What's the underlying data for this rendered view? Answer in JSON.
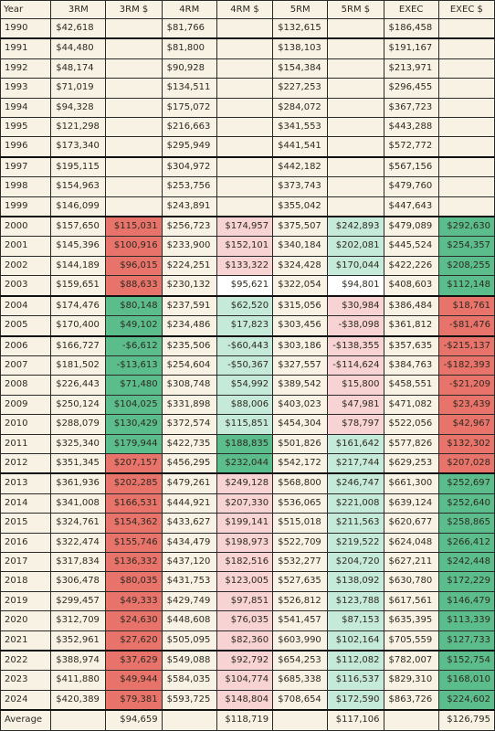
{
  "table": {
    "headers": [
      "Year",
      "3RM",
      "3RM $",
      "4RM",
      "4RM $",
      "5RM",
      "5RM $",
      "EXEC",
      "EXEC $"
    ],
    "group_breaks_before": [
      "1991",
      "1997",
      "2000",
      "2004",
      "2006",
      "2013",
      "2022"
    ],
    "colors": {
      "background": "#f7f2e4",
      "dark_green": "#5bbd8c",
      "light_green": "#c6ead9",
      "dark_red": "#e8736a",
      "light_red": "#f7d3d3",
      "white": "#ffffff"
    },
    "rows": [
      {
        "year": "1990",
        "r3": "$42,618",
        "r3d": "",
        "r4": "$81,766",
        "r4d": "",
        "r5": "$132,615",
        "r5d": "",
        "ex": "$186,458",
        "exd": ""
      },
      {
        "year": "1991",
        "r3": "$44,480",
        "r3d": "",
        "r4": "$81,800",
        "r4d": "",
        "r5": "$138,103",
        "r5d": "",
        "ex": "$191,167",
        "exd": ""
      },
      {
        "year": "1992",
        "r3": "$48,174",
        "r3d": "",
        "r4": "$90,928",
        "r4d": "",
        "r5": "$154,384",
        "r5d": "",
        "ex": "$213,971",
        "exd": ""
      },
      {
        "year": "1993",
        "r3": "$71,019",
        "r3d": "",
        "r4": "$134,511",
        "r4d": "",
        "r5": "$227,253",
        "r5d": "",
        "ex": "$296,455",
        "exd": ""
      },
      {
        "year": "1994",
        "r3": "$94,328",
        "r3d": "",
        "r4": "$175,072",
        "r4d": "",
        "r5": "$284,072",
        "r5d": "",
        "ex": "$367,723",
        "exd": ""
      },
      {
        "year": "1995",
        "r3": "$121,298",
        "r3d": "",
        "r4": "$216,663",
        "r4d": "",
        "r5": "$341,553",
        "r5d": "",
        "ex": "$443,288",
        "exd": ""
      },
      {
        "year": "1996",
        "r3": "$173,340",
        "r3d": "",
        "r4": "$295,949",
        "r4d": "",
        "r5": "$441,541",
        "r5d": "",
        "ex": "$572,772",
        "exd": ""
      },
      {
        "year": "1997",
        "r3": "$195,115",
        "r3d": "",
        "r4": "$304,972",
        "r4d": "",
        "r5": "$442,182",
        "r5d": "",
        "ex": "$567,156",
        "exd": ""
      },
      {
        "year": "1998",
        "r3": "$154,963",
        "r3d": "",
        "r4": "$253,756",
        "r4d": "",
        "r5": "$373,743",
        "r5d": "",
        "ex": "$479,760",
        "exd": ""
      },
      {
        "year": "1999",
        "r3": "$146,099",
        "r3d": "",
        "r4": "$243,891",
        "r4d": "",
        "r5": "$355,042",
        "r5d": "",
        "ex": "$447,643",
        "exd": ""
      },
      {
        "year": "2000",
        "r3": "$157,650",
        "r3d": "$115,031",
        "r3c": "dark_red",
        "r4": "$256,723",
        "r4d": "$174,957",
        "r4c": "light_red",
        "r5": "$375,507",
        "r5d": "$242,893",
        "r5c": "light_green",
        "ex": "$479,089",
        "exd": "$292,630",
        "exc": "dark_green"
      },
      {
        "year": "2001",
        "r3": "$145,396",
        "r3d": "$100,916",
        "r3c": "dark_red",
        "r4": "$233,900",
        "r4d": "$152,101",
        "r4c": "light_red",
        "r5": "$340,184",
        "r5d": "$202,081",
        "r5c": "light_green",
        "ex": "$445,524",
        "exd": "$254,357",
        "exc": "dark_green"
      },
      {
        "year": "2002",
        "r3": "$144,189",
        "r3d": "$96,015",
        "r3c": "dark_red",
        "r4": "$224,251",
        "r4d": "$133,322",
        "r4c": "light_red",
        "r5": "$324,428",
        "r5d": "$170,044",
        "r5c": "light_green",
        "ex": "$422,226",
        "exd": "$208,255",
        "exc": "dark_green"
      },
      {
        "year": "2003",
        "r3": "$159,651",
        "r3d": "$88,633",
        "r3c": "dark_red",
        "r4": "$230,132",
        "r4d": "$95,621",
        "r4c": "white",
        "r5": "$322,054",
        "r5d": "$94,801",
        "r5c": "white",
        "ex": "$408,603",
        "exd": "$112,148",
        "exc": "dark_green"
      },
      {
        "year": "2004",
        "r3": "$174,476",
        "r3d": "$80,148",
        "r3c": "dark_green",
        "r4": "$237,591",
        "r4d": "$62,520",
        "r4c": "light_green",
        "r5": "$315,056",
        "r5d": "$30,984",
        "r5c": "light_red",
        "ex": "$386,484",
        "exd": "$18,761",
        "exc": "dark_red"
      },
      {
        "year": "2005",
        "r3": "$170,400",
        "r3d": "$49,102",
        "r3c": "dark_green",
        "r4": "$234,486",
        "r4d": "$17,823",
        "r4c": "light_green",
        "r5": "$303,456",
        "r5d": "-$38,098",
        "r5c": "light_red",
        "ex": "$361,812",
        "exd": "-$81,476",
        "exc": "dark_red"
      },
      {
        "year": "2006",
        "r3": "$166,727",
        "r3d": "-$6,612",
        "r3c": "dark_green",
        "r4": "$235,506",
        "r4d": "-$60,443",
        "r4c": "light_green",
        "r5": "$303,186",
        "r5d": "-$138,355",
        "r5c": "light_red",
        "ex": "$357,635",
        "exd": "-$215,137",
        "exc": "dark_red"
      },
      {
        "year": "2007",
        "r3": "$181,502",
        "r3d": "-$13,613",
        "r3c": "dark_green",
        "r4": "$254,604",
        "r4d": "-$50,367",
        "r4c": "light_green",
        "r5": "$327,557",
        "r5d": "-$114,624",
        "r5c": "light_red",
        "ex": "$384,763",
        "exd": "-$182,393",
        "exc": "dark_red"
      },
      {
        "year": "2008",
        "r3": "$226,443",
        "r3d": "$71,480",
        "r3c": "dark_green",
        "r4": "$308,748",
        "r4d": "$54,992",
        "r4c": "light_green",
        "r5": "$389,542",
        "r5d": "$15,800",
        "r5c": "light_red",
        "ex": "$458,551",
        "exd": "-$21,209",
        "exc": "dark_red"
      },
      {
        "year": "2009",
        "r3": "$250,124",
        "r3d": "$104,025",
        "r3c": "dark_green",
        "r4": "$331,898",
        "r4d": "$88,006",
        "r4c": "light_green",
        "r5": "$403,023",
        "r5d": "$47,981",
        "r5c": "light_red",
        "ex": "$471,082",
        "exd": "$23,439",
        "exc": "dark_red"
      },
      {
        "year": "2010",
        "r3": "$288,079",
        "r3d": "$130,429",
        "r3c": "dark_green",
        "r4": "$372,574",
        "r4d": "$115,851",
        "r4c": "light_green",
        "r5": "$454,304",
        "r5d": "$78,797",
        "r5c": "light_red",
        "ex": "$522,056",
        "exd": "$42,967",
        "exc": "dark_red"
      },
      {
        "year": "2011",
        "r3": "$325,340",
        "r3d": "$179,944",
        "r3c": "dark_green",
        "r4": "$422,735",
        "r4d": "$188,835",
        "r4c": "dark_green",
        "r5": "$501,826",
        "r5d": "$161,642",
        "r5c": "light_green",
        "ex": "$577,826",
        "exd": "$132,302",
        "exc": "dark_red"
      },
      {
        "year": "2012",
        "r3": "$351,345",
        "r3d": "$207,157",
        "r3c": "dark_red",
        "r4": "$456,295",
        "r4d": "$232,044",
        "r4c": "dark_green",
        "r5": "$542,172",
        "r5d": "$217,744",
        "r5c": "light_green",
        "ex": "$629,253",
        "exd": "$207,028",
        "exc": "dark_red"
      },
      {
        "year": "2013",
        "r3": "$361,936",
        "r3d": "$202,285",
        "r3c": "dark_red",
        "r4": "$479,261",
        "r4d": "$249,128",
        "r4c": "light_red",
        "r5": "$568,800",
        "r5d": "$246,747",
        "r5c": "light_green",
        "ex": "$661,300",
        "exd": "$252,697",
        "exc": "dark_green"
      },
      {
        "year": "2014",
        "r3": "$341,008",
        "r3d": "$166,531",
        "r3c": "dark_red",
        "r4": "$444,921",
        "r4d": "$207,330",
        "r4c": "light_red",
        "r5": "$536,065",
        "r5d": "$221,008",
        "r5c": "light_green",
        "ex": "$639,124",
        "exd": "$252,640",
        "exc": "dark_green"
      },
      {
        "year": "2015",
        "r3": "$324,761",
        "r3d": "$154,362",
        "r3c": "dark_red",
        "r4": "$433,627",
        "r4d": "$199,141",
        "r4c": "light_red",
        "r5": "$515,018",
        "r5d": "$211,563",
        "r5c": "light_green",
        "ex": "$620,677",
        "exd": "$258,865",
        "exc": "dark_green"
      },
      {
        "year": "2016",
        "r3": "$322,474",
        "r3d": "$155,746",
        "r3c": "dark_red",
        "r4": "$434,479",
        "r4d": "$198,973",
        "r4c": "light_red",
        "r5": "$522,709",
        "r5d": "$219,522",
        "r5c": "light_green",
        "ex": "$624,048",
        "exd": "$266,412",
        "exc": "dark_green"
      },
      {
        "year": "2017",
        "r3": "$317,834",
        "r3d": "$136,332",
        "r3c": "dark_red",
        "r4": "$437,120",
        "r4d": "$182,516",
        "r4c": "light_red",
        "r5": "$532,277",
        "r5d": "$204,720",
        "r5c": "light_green",
        "ex": "$627,211",
        "exd": "$242,448",
        "exc": "dark_green"
      },
      {
        "year": "2018",
        "r3": "$306,478",
        "r3d": "$80,035",
        "r3c": "dark_red",
        "r4": "$431,753",
        "r4d": "$123,005",
        "r4c": "light_red",
        "r5": "$527,635",
        "r5d": "$138,092",
        "r5c": "light_green",
        "ex": "$630,780",
        "exd": "$172,229",
        "exc": "dark_green"
      },
      {
        "year": "2019",
        "r3": "$299,457",
        "r3d": "$49,333",
        "r3c": "dark_red",
        "r4": "$429,749",
        "r4d": "$97,851",
        "r4c": "light_red",
        "r5": "$526,812",
        "r5d": "$123,788",
        "r5c": "light_green",
        "ex": "$617,561",
        "exd": "$146,479",
        "exc": "dark_green"
      },
      {
        "year": "2020",
        "r3": "$312,709",
        "r3d": "$24,630",
        "r3c": "dark_red",
        "r4": "$448,608",
        "r4d": "$76,035",
        "r4c": "light_red",
        "r5": "$541,457",
        "r5d": "$87,153",
        "r5c": "light_green",
        "ex": "$635,395",
        "exd": "$113,339",
        "exc": "dark_green"
      },
      {
        "year": "2021",
        "r3": "$352,961",
        "r3d": "$27,620",
        "r3c": "dark_red",
        "r4": "$505,095",
        "r4d": "$82,360",
        "r4c": "light_red",
        "r5": "$603,990",
        "r5d": "$102,164",
        "r5c": "light_green",
        "ex": "$705,559",
        "exd": "$127,733",
        "exc": "dark_green"
      },
      {
        "year": "2022",
        "r3": "$388,974",
        "r3d": "$37,629",
        "r3c": "dark_red",
        "r4": "$549,088",
        "r4d": "$92,792",
        "r4c": "light_red",
        "r5": "$654,253",
        "r5d": "$112,082",
        "r5c": "light_green",
        "ex": "$782,007",
        "exd": "$152,754",
        "exc": "dark_green"
      },
      {
        "year": "2023",
        "r3": "$411,880",
        "r3d": "$49,944",
        "r3c": "dark_red",
        "r4": "$584,035",
        "r4d": "$104,774",
        "r4c": "light_red",
        "r5": "$685,338",
        "r5d": "$116,537",
        "r5c": "light_green",
        "ex": "$829,310",
        "exd": "$168,010",
        "exc": "dark_green"
      },
      {
        "year": "2024",
        "r3": "$420,389",
        "r3d": "$79,381",
        "r3c": "dark_red",
        "r4": "$593,725",
        "r4d": "$148,804",
        "r4c": "light_red",
        "r5": "$708,654",
        "r5d": "$172,590",
        "r5c": "light_green",
        "ex": "$863,726",
        "exd": "$224,602",
        "exc": "dark_green"
      },
      {
        "year": "Average",
        "r3": "",
        "r3d": "$94,659",
        "r4": "",
        "r4d": "$118,719",
        "r5": "",
        "r5d": "$117,106",
        "ex": "",
        "exd": "$126,795"
      }
    ]
  }
}
